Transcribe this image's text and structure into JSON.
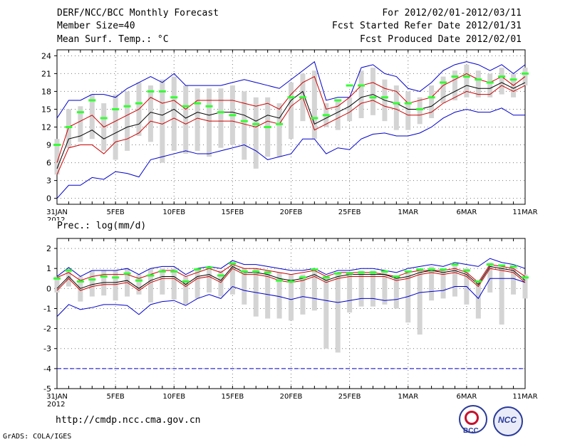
{
  "header": {
    "title": "DERF/NCC/BCC Monthly Forecast",
    "member_size": "Member Size=40",
    "variable": "Mean Surf. Temp.: °C",
    "forecast_period": "For 2012/02/01-2012/03/11",
    "refer_date": "Fcst Started Refer Date 2012/01/31",
    "produced_date": "Fcst Produced Date 2012/02/01"
  },
  "footer": {
    "url": "http://cmdp.ncc.cma.gov.cn",
    "credit": "GrADS: COLA/IGES",
    "logo_left_text": "BCC",
    "logo_right_text": "NCC"
  },
  "colors": {
    "box": "#d4d4d4",
    "mean_green": "#33ff33",
    "median_black": "#000000",
    "percentile_red": "#cc0000",
    "extreme_blue": "#0000cc"
  },
  "chart_data": [
    {
      "type": "box",
      "title": "Mean Surf. Temp.: °C",
      "ylabel": "°C",
      "ylim": [
        -1,
        25
      ],
      "yticks": [
        0,
        3,
        6,
        9,
        12,
        15,
        18,
        21,
        24
      ],
      "xticks": [
        {
          "day": 0,
          "label": "31JAN",
          "sub": "2012"
        },
        {
          "day": 5,
          "label": "5FEB"
        },
        {
          "day": 10,
          "label": "10FEB"
        },
        {
          "day": 15,
          "label": "15FEB"
        },
        {
          "day": 20,
          "label": "20FEB"
        },
        {
          "day": 25,
          "label": "25FEB"
        },
        {
          "day": 30,
          "label": "1MAR"
        },
        {
          "day": 35,
          "label": "6MAR"
        },
        {
          "day": 40,
          "label": "11MAR"
        }
      ],
      "series": {
        "max": [
          13.5,
          16.5,
          16.5,
          17.5,
          17.5,
          17,
          18.5,
          19.5,
          20.5,
          19.5,
          21,
          19,
          19,
          19,
          19,
          19.5,
          20,
          19.5,
          19,
          18.5,
          20,
          21.5,
          23,
          16.5,
          17,
          17,
          22,
          22.5,
          21,
          20.5,
          18.5,
          18,
          19.5,
          21.5,
          22.5,
          23,
          22.5,
          21.5,
          22.5,
          21,
          22.5
        ],
        "p90": [
          6,
          12,
          13,
          14,
          12,
          13,
          14,
          15,
          17,
          16,
          16.5,
          15,
          16.5,
          16.5,
          16.5,
          16.5,
          16,
          15.5,
          16,
          15,
          17.5,
          19.5,
          20.5,
          15,
          15.5,
          17,
          19,
          19.5,
          18.5,
          18,
          16,
          16.5,
          17,
          19,
          20,
          21,
          20,
          19.5,
          20.5,
          19,
          20.5
        ],
        "median": [
          5,
          10,
          10.5,
          11.5,
          10,
          11,
          12,
          12.5,
          14.5,
          14,
          15,
          13.5,
          14.5,
          14,
          14.5,
          14.5,
          14,
          13,
          14,
          13.5,
          16.5,
          18,
          12.5,
          13.5,
          14.5,
          15.5,
          17,
          17.5,
          16.5,
          16,
          15,
          15,
          15.5,
          17,
          18,
          19,
          18.5,
          18.5,
          19.5,
          18.5,
          19.5
        ],
        "p10": [
          4,
          8.5,
          9,
          9,
          7.5,
          9.5,
          10,
          11,
          13,
          12.5,
          13.5,
          12.5,
          13.5,
          13,
          13,
          13,
          12.5,
          12,
          13,
          12.5,
          15.5,
          17,
          11.5,
          12.5,
          13.5,
          14.5,
          16,
          16.5,
          15.5,
          15,
          14,
          14,
          14.5,
          16,
          17,
          18,
          17.5,
          17.5,
          19,
          18,
          19
        ],
        "min": [
          0,
          2.2,
          2.2,
          3.5,
          3.2,
          4.5,
          4.2,
          3.6,
          6.5,
          7,
          7.5,
          8,
          7.5,
          7.5,
          8,
          8.5,
          9,
          8,
          6.5,
          7,
          7.5,
          10,
          10,
          7.5,
          8.5,
          8.2,
          10,
          10.8,
          11,
          10.5,
          10.5,
          11,
          12,
          13.5,
          14.5,
          15,
          14.5,
          14.5,
          15.2,
          14,
          14
        ],
        "mean": [
          9,
          12,
          14.5,
          16.5,
          13.5,
          15,
          15.5,
          16,
          18,
          18,
          17,
          15.5,
          16,
          15.5,
          14.5,
          14,
          13,
          12.5,
          12,
          12.5,
          17,
          17,
          13.5,
          14,
          16.5,
          19,
          19,
          17,
          17,
          16,
          16,
          15,
          17,
          19.5,
          20.5,
          20.5,
          20,
          19.5,
          20.5,
          20,
          21
        ],
        "box_lo": [
          4,
          8.5,
          9.5,
          10,
          8,
          6.5,
          8,
          10.5,
          9.5,
          6,
          8,
          7.5,
          8,
          7,
          8.5,
          9,
          6.5,
          5,
          7,
          7,
          10,
          13,
          10,
          12,
          11.5,
          13,
          13.5,
          14,
          13,
          11.5,
          11.5,
          12.5,
          13.5,
          16,
          16.5,
          17,
          17,
          17,
          17.5,
          17,
          19
        ],
        "box_hi": [
          10,
          15,
          15.5,
          17.5,
          16,
          17.5,
          18,
          19.5,
          19,
          20,
          20.5,
          19,
          18.5,
          18.5,
          18.5,
          19,
          18,
          17,
          17,
          16,
          19.5,
          21,
          21.5,
          16,
          16.5,
          17,
          21.5,
          22,
          20,
          19,
          18,
          17,
          19,
          20.5,
          21.5,
          22.5,
          21.5,
          21,
          22,
          21,
          22
        ]
      }
    },
    {
      "type": "box",
      "title": "Prec.: log(mm/d)",
      "ylabel": "log(mm/d)",
      "ylim": [
        -5,
        2.5
      ],
      "yticks": [
        -5,
        -4,
        -3,
        -2,
        -1,
        0,
        1,
        2
      ],
      "xticks": [
        {
          "day": 0,
          "label": "31JAN",
          "sub": "2012"
        },
        {
          "day": 5,
          "label": "5FEB"
        },
        {
          "day": 10,
          "label": "10FEB"
        },
        {
          "day": 15,
          "label": "15FEB"
        },
        {
          "day": 20,
          "label": "20FEB"
        },
        {
          "day": 25,
          "label": "25FEB"
        },
        {
          "day": 30,
          "label": "1MAR"
        },
        {
          "day": 35,
          "label": "6MAR"
        },
        {
          "day": 40,
          "label": "11MAR"
        }
      ],
      "series": {
        "max": [
          0.6,
          1.05,
          0.6,
          0.9,
          0.9,
          0.9,
          1.0,
          0.7,
          1.0,
          1.1,
          1.1,
          0.7,
          1.0,
          1.1,
          1.0,
          1.4,
          1.2,
          1.2,
          1.1,
          1.0,
          0.9,
          0.9,
          1.0,
          0.7,
          0.9,
          0.9,
          1.0,
          1.0,
          0.9,
          0.8,
          1.0,
          1.1,
          1.2,
          1.1,
          1.3,
          1.2,
          1.1,
          1.5,
          1.3,
          1.2,
          1.0,
          1.0
        ],
        "p90": [
          0.55,
          0.8,
          0.4,
          0.6,
          0.7,
          0.7,
          0.7,
          0.5,
          0.7,
          0.9,
          0.9,
          0.6,
          0.8,
          1.0,
          0.8,
          1.2,
          1.0,
          1.0,
          0.9,
          0.8,
          0.7,
          0.8,
          0.9,
          0.6,
          0.8,
          0.8,
          0.8,
          0.8,
          0.7,
          0.6,
          0.8,
          0.9,
          0.9,
          0.9,
          1.0,
          0.8,
          0.3,
          1.2,
          1.1,
          1.0,
          0.6,
          0.8
        ],
        "median": [
          0.0,
          0.6,
          0.0,
          0.2,
          0.3,
          0.3,
          0.4,
          0.0,
          0.4,
          0.6,
          0.6,
          0.2,
          0.6,
          0.7,
          0.4,
          1.1,
          0.8,
          0.8,
          0.7,
          0.5,
          0.4,
          0.5,
          0.7,
          0.4,
          0.6,
          0.7,
          0.7,
          0.7,
          0.7,
          0.5,
          0.6,
          0.8,
          0.9,
          0.8,
          0.9,
          0.7,
          0.2,
          1.1,
          1.0,
          0.9,
          0.4,
          0.7
        ],
        "p10": [
          -0.1,
          0.5,
          -0.1,
          0.1,
          0.2,
          0.2,
          0.3,
          -0.1,
          0.3,
          0.5,
          0.5,
          0.1,
          0.5,
          0.6,
          0.3,
          1.0,
          0.7,
          0.7,
          0.6,
          0.4,
          0.3,
          0.4,
          0.6,
          0.3,
          0.5,
          0.6,
          0.6,
          0.6,
          0.6,
          0.4,
          0.5,
          0.7,
          0.8,
          0.7,
          0.8,
          0.6,
          0.1,
          1.0,
          0.9,
          0.8,
          0.3,
          0.6
        ],
        "min": [
          -1.4,
          -0.8,
          -1.05,
          -0.95,
          -0.8,
          -0.8,
          -0.85,
          -1.3,
          -0.8,
          -0.65,
          -0.6,
          -0.85,
          -0.5,
          -0.3,
          -0.5,
          0.1,
          -0.1,
          -0.2,
          -0.3,
          -0.4,
          -0.55,
          -0.4,
          -0.5,
          -0.6,
          -0.7,
          -0.6,
          -0.5,
          -0.5,
          -0.6,
          -0.55,
          -0.4,
          -0.2,
          -0.15,
          -0.1,
          0.1,
          0.1,
          -0.5,
          0.5,
          0.5,
          0.5,
          0.3,
          0.1
        ],
        "mean": [
          0.5,
          0.9,
          0.35,
          0.45,
          0.6,
          0.55,
          0.75,
          0.4,
          0.65,
          0.85,
          0.85,
          0.35,
          0.95,
          1.05,
          0.65,
          1.25,
          0.85,
          0.85,
          0.8,
          0.4,
          0.35,
          0.55,
          0.95,
          0.55,
          0.75,
          0.75,
          0.8,
          0.8,
          0.85,
          0.6,
          0.85,
          0.95,
          0.95,
          0.95,
          1.2,
          0.9,
          0.35,
          1.2,
          1.15,
          1.1,
          0.55,
          0.85
        ],
        "box_lo": [
          -0.2,
          0.1,
          -0.65,
          -0.4,
          -0.35,
          -0.6,
          -0.4,
          -0.3,
          -0.7,
          -0.3,
          -0.55,
          -0.8,
          -0.5,
          -0.2,
          -0.4,
          -0.3,
          -0.8,
          -1.4,
          -1.5,
          -1.5,
          -1.6,
          -1.3,
          -1.1,
          -3.0,
          -3.2,
          -1.2,
          -0.9,
          -0.9,
          -0.8,
          -1.0,
          -1.7,
          -2.3,
          -0.6,
          -0.5,
          -0.4,
          -0.8,
          -1.5,
          -0.2,
          -1.8,
          -0.3,
          -0.5,
          -0.1
        ],
        "box_hi": [
          0.6,
          1.0,
          0.6,
          0.9,
          0.9,
          0.9,
          1.0,
          0.7,
          1.0,
          1.0,
          1.0,
          0.6,
          1.0,
          1.0,
          0.9,
          1.35,
          1.0,
          1.0,
          0.9,
          0.8,
          0.7,
          0.7,
          0.9,
          0.6,
          0.8,
          0.8,
          0.9,
          0.9,
          0.8,
          0.6,
          0.9,
          1.0,
          1.1,
          1.0,
          1.2,
          1.0,
          0.4,
          1.3,
          1.2,
          1.1,
          0.7,
          0.9
        ],
        "constant_line": -4.0
      }
    }
  ]
}
